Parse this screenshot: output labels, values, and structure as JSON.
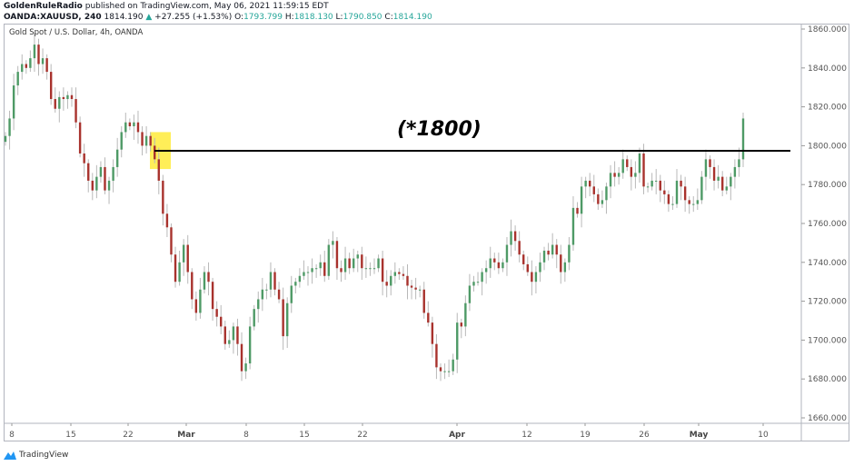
{
  "header": {
    "publisher": "GoldenRuleRadio",
    "published_text": "published on TradingView.com, May 06, 2021 11:59:15 EDT",
    "symbol": "OANDA:XAUUSD, 240",
    "last": "1814.190",
    "change_arrow": "▲",
    "change": "+27.255 (+1.53%)",
    "o_label": "O:",
    "o": "1793.799",
    "h_label": "H:",
    "h": "1818.130",
    "l_label": "L:",
    "l": "1790.850",
    "c_label": "C:",
    "c": "1814.190"
  },
  "footer": {
    "brand": "TradingView"
  },
  "chart_data": {
    "type": "candlestick",
    "title": "Gold Spot / U.S. Dollar, 4h, OANDA",
    "ylim": [
      1655,
      1865
    ],
    "y_ticks": [
      "1660.000",
      "1680.000",
      "1700.000",
      "1720.000",
      "1740.000",
      "1760.000",
      "1780.000",
      "1800.000",
      "1820.000",
      "1840.000",
      "1860.000"
    ],
    "x_ticks": [
      {
        "label": "8",
        "bold": false
      },
      {
        "label": "15",
        "bold": false
      },
      {
        "label": "22",
        "bold": false
      },
      {
        "label": "Mar",
        "bold": true
      },
      {
        "label": "8",
        "bold": false
      },
      {
        "label": "15",
        "bold": false
      },
      {
        "label": "22",
        "bold": false
      },
      {
        "label": "Apr",
        "bold": true
      },
      {
        "label": "12",
        "bold": false
      },
      {
        "label": "19",
        "bold": false
      },
      {
        "label": "26",
        "bold": false
      },
      {
        "label": "May",
        "bold": true
      },
      {
        "label": "10",
        "bold": false
      }
    ],
    "closes": [
      1805,
      1814,
      1831,
      1838,
      1842,
      1840,
      1845,
      1852,
      1842,
      1845,
      1838,
      1824,
      1819,
      1825,
      1824,
      1826,
      1824,
      1812,
      1796,
      1791,
      1782,
      1777,
      1784,
      1789,
      1777,
      1782,
      1789,
      1798,
      1807,
      1812,
      1810,
      1812,
      1807,
      1800,
      1805,
      1800,
      1793,
      1782,
      1765,
      1758,
      1744,
      1730,
      1740,
      1749,
      1735,
      1721,
      1714,
      1726,
      1735,
      1730,
      1716,
      1712,
      1707,
      1698,
      1700,
      1707,
      1698,
      1684,
      1688,
      1707,
      1716,
      1721,
      1726,
      1726,
      1735,
      1726,
      1721,
      1702,
      1719,
      1728,
      1730,
      1733,
      1735,
      1735,
      1737,
      1737,
      1740,
      1733,
      1749,
      1751,
      1737,
      1735,
      1742,
      1737,
      1742,
      1744,
      1737,
      1737,
      1737,
      1737,
      1742,
      1730,
      1728,
      1733,
      1735,
      1734,
      1733,
      1728,
      1727,
      1726,
      1726,
      1714,
      1709,
      1698,
      1686,
      1684,
      1684,
      1684,
      1690,
      1709,
      1707,
      1719,
      1728,
      1730,
      1730,
      1735,
      1737,
      1742,
      1740,
      1737,
      1740,
      1749,
      1756,
      1751,
      1744,
      1739,
      1735,
      1730,
      1735,
      1740,
      1746,
      1744,
      1749,
      1744,
      1735,
      1740,
      1749,
      1768,
      1765,
      1779,
      1782,
      1779,
      1775,
      1770,
      1772,
      1779,
      1786,
      1784,
      1786,
      1793,
      1789,
      1784,
      1786,
      1796,
      1779,
      1779,
      1782,
      1782,
      1777,
      1775,
      1770,
      1770,
      1782,
      1779,
      1772,
      1770,
      1770,
      1772,
      1784,
      1793,
      1789,
      1782,
      1784,
      1777,
      1779,
      1784,
      1789,
      1793,
      1814
    ],
    "up_color": "#4e9a66",
    "down_color": "#a8322d",
    "wick_color": "#b8b8b8",
    "level_line": {
      "price": 1797.4,
      "color": "#000000"
    },
    "highlight": {
      "price_low": 1788,
      "price_high": 1807,
      "color": "#ffeb3b"
    },
    "annotation": "(*1800)"
  }
}
